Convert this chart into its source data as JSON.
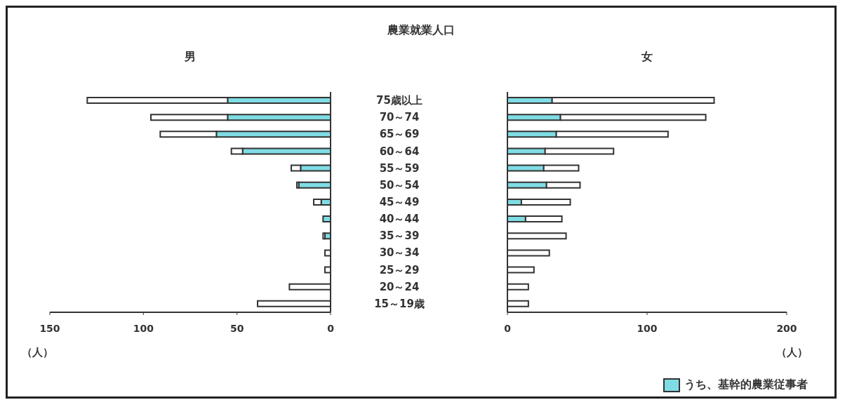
{
  "chart_data": [
    {
      "type": "bar",
      "orientation": "horizontal",
      "stacked": true,
      "title": "男",
      "xlabel": "（人）",
      "annotations": [
        "農業就業人口"
      ],
      "categories": [
        "75歳以上",
        "70～74",
        "65～69",
        "60～64",
        "55～59",
        "50～54",
        "45～49",
        "40～44",
        "35～39",
        "30～34",
        "25～29",
        "20～24",
        "15～19歳"
      ],
      "series": [
        {
          "color": "#7fdce4",
          "values": [
            55,
            55,
            61,
            47,
            16,
            17,
            5,
            4,
            3,
            0,
            0,
            0,
            0
          ]
        },
        {
          "color": "#ffffff",
          "values": [
            75,
            41,
            30,
            6,
            5,
            1,
            4,
            0,
            1,
            3,
            3,
            22,
            39
          ]
        }
      ],
      "xlim": [
        150,
        0
      ],
      "xticks": [
        150,
        100,
        50,
        0
      ],
      "grid": false,
      "legend": false
    },
    {
      "type": "bar",
      "orientation": "horizontal",
      "stacked": true,
      "title": "女",
      "xlabel": "（人）",
      "categories": [
        null,
        null,
        null,
        null,
        null,
        null,
        null,
        null,
        null,
        null,
        null,
        null,
        null
      ],
      "series": [
        {
          "name": "うち、基幹的農業従事者",
          "color": "#7fdce4",
          "values": [
            32,
            38,
            35,
            27,
            26,
            28,
            10,
            13,
            0,
            0,
            0,
            0,
            0
          ]
        },
        {
          "color": "#ffffff",
          "values": [
            116,
            104,
            80,
            49,
            25,
            24,
            35,
            26,
            42,
            30,
            19,
            15,
            15
          ]
        }
      ],
      "xlim": [
        0,
        200
      ],
      "xticks": [
        0,
        100,
        200
      ],
      "tick_labels": "x",
      "grid": false,
      "legend": "bottom right"
    }
  ]
}
